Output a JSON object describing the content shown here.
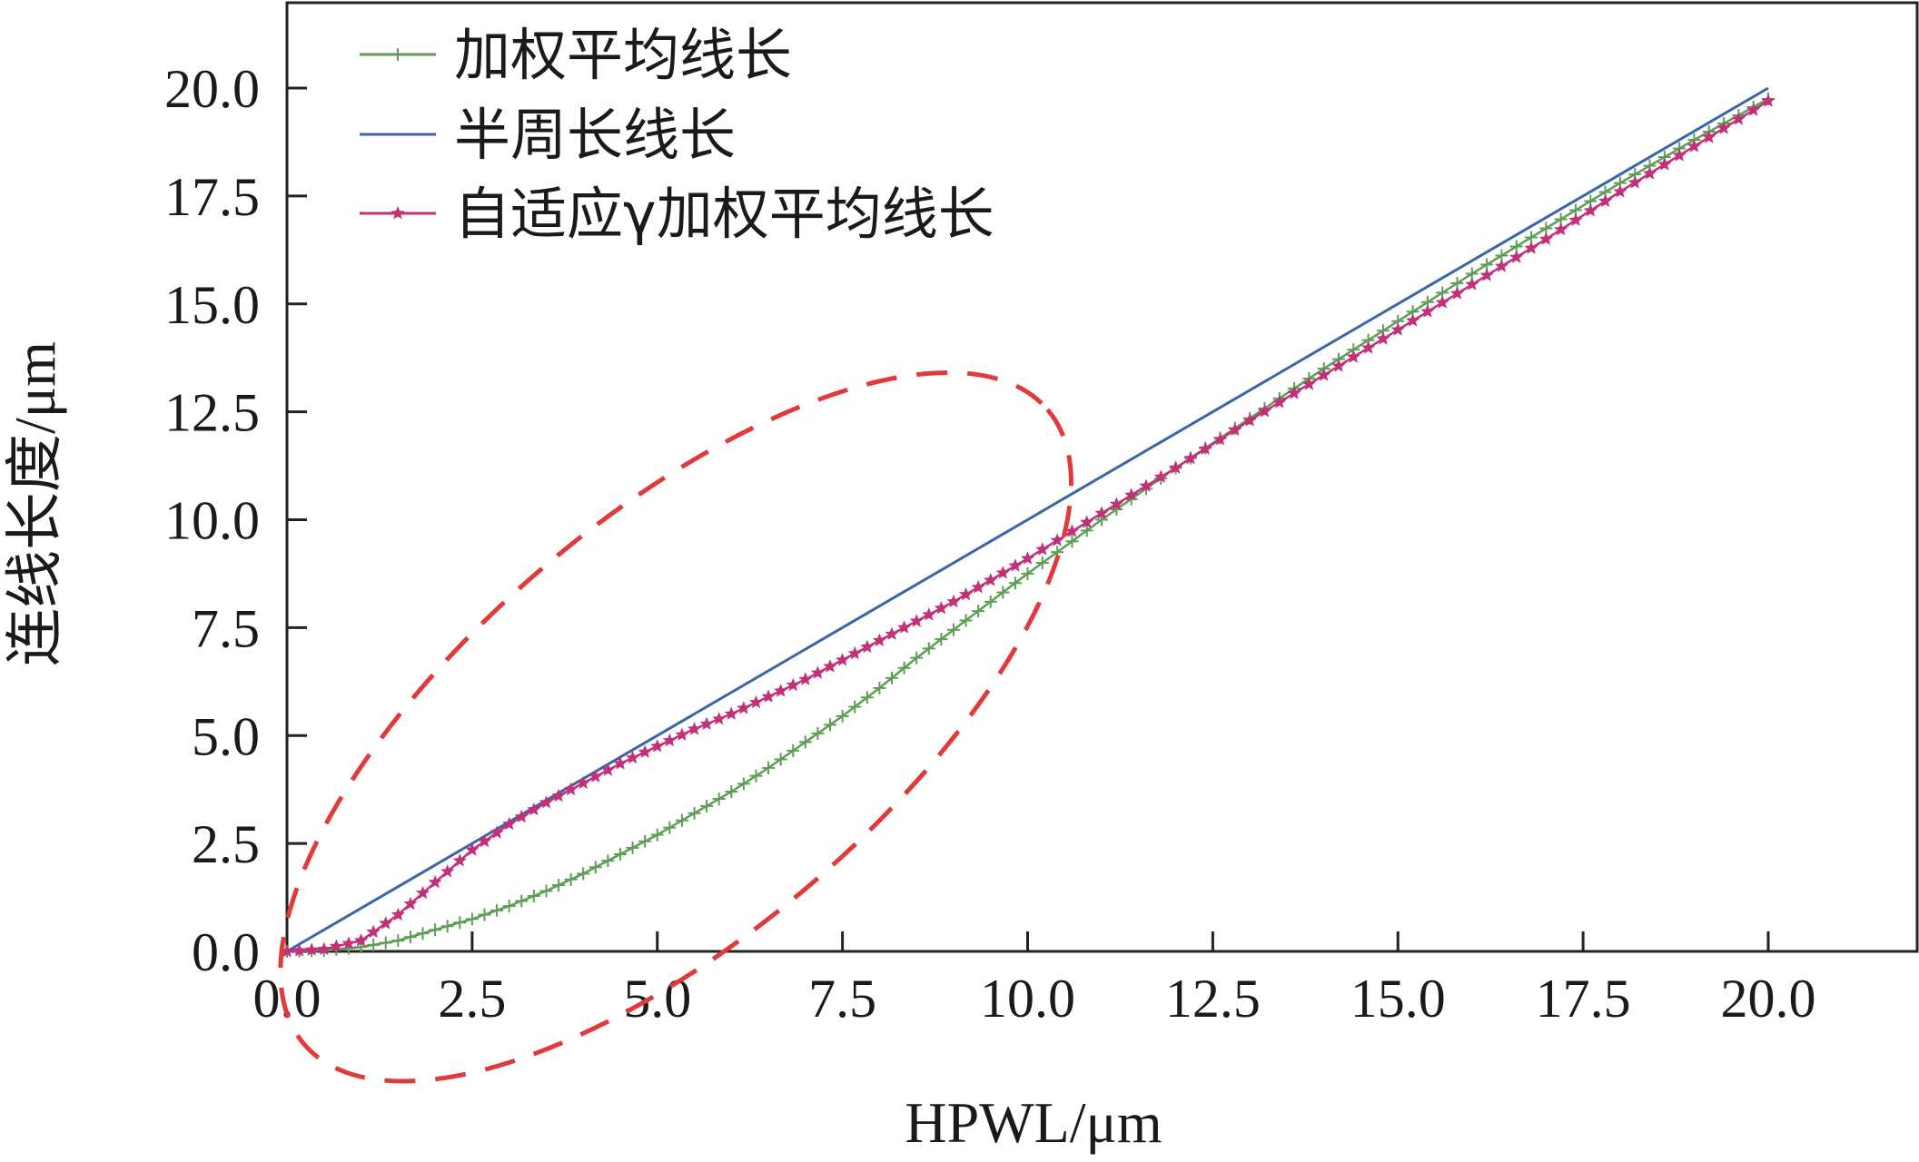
{
  "chart_data": {
    "type": "line",
    "xlabel": "HPWL/μm",
    "ylabel": "连线长度/μm",
    "xlim": [
      0,
      22
    ],
    "ylim": [
      0,
      22
    ],
    "x_ticks": [
      "0.0",
      "2.5",
      "5.0",
      "7.5",
      "10.0",
      "12.5",
      "15.0",
      "17.5",
      "20.0"
    ],
    "y_ticks": [
      "0.0",
      "2.5",
      "5.0",
      "7.5",
      "10.0",
      "12.5",
      "15.0",
      "17.5",
      "20.0"
    ],
    "grid": false,
    "legend_position": "top-left",
    "series": [
      {
        "name": "加权平均线长",
        "color": "#5d9e55",
        "marker": "plus",
        "x": [
          0,
          0.5,
          1,
          1.5,
          2,
          2.5,
          3,
          3.5,
          4,
          4.5,
          5,
          5.5,
          6,
          6.5,
          7,
          7.5,
          8,
          8.5,
          9,
          9.5,
          10,
          11,
          12,
          13,
          14,
          15,
          16,
          17,
          18,
          19,
          20
        ],
        "y": [
          0,
          0.02,
          0.1,
          0.25,
          0.5,
          0.75,
          1.05,
          1.4,
          1.8,
          2.25,
          2.7,
          3.2,
          3.7,
          4.25,
          4.85,
          5.45,
          6.1,
          6.8,
          7.45,
          8.1,
          8.75,
          10.0,
          11.2,
          12.35,
          13.5,
          14.6,
          15.7,
          16.75,
          17.8,
          18.8,
          19.75
        ]
      },
      {
        "name": "半周长线长",
        "color": "#3a66a8",
        "marker": "none",
        "x": [
          0,
          20
        ],
        "y": [
          0,
          20
        ]
      },
      {
        "name": "自适应γ加权平均线长",
        "color": "#c2307a",
        "marker": "star",
        "x": [
          0,
          0.5,
          1,
          1.5,
          2,
          2.5,
          3,
          3.5,
          4,
          4.5,
          5,
          5.5,
          6,
          6.5,
          7,
          7.5,
          8,
          8.5,
          9,
          9.5,
          10,
          11,
          12,
          13,
          14,
          15,
          16,
          17,
          18,
          19,
          20
        ],
        "y": [
          0,
          0.05,
          0.25,
          0.85,
          1.6,
          2.35,
          2.95,
          3.45,
          3.9,
          4.35,
          4.75,
          5.15,
          5.5,
          5.9,
          6.3,
          6.75,
          7.2,
          7.65,
          8.1,
          8.6,
          9.1,
          10.15,
          11.2,
          12.3,
          13.35,
          14.4,
          15.45,
          16.5,
          17.6,
          18.65,
          19.7
        ]
      }
    ],
    "annotation": {
      "type": "dashed-ellipse",
      "color": "#e03a3a",
      "cx": 5.25,
      "cy": 5.2,
      "rx": 6.6,
      "ry": 2.8,
      "angle_deg": 40.5
    }
  }
}
